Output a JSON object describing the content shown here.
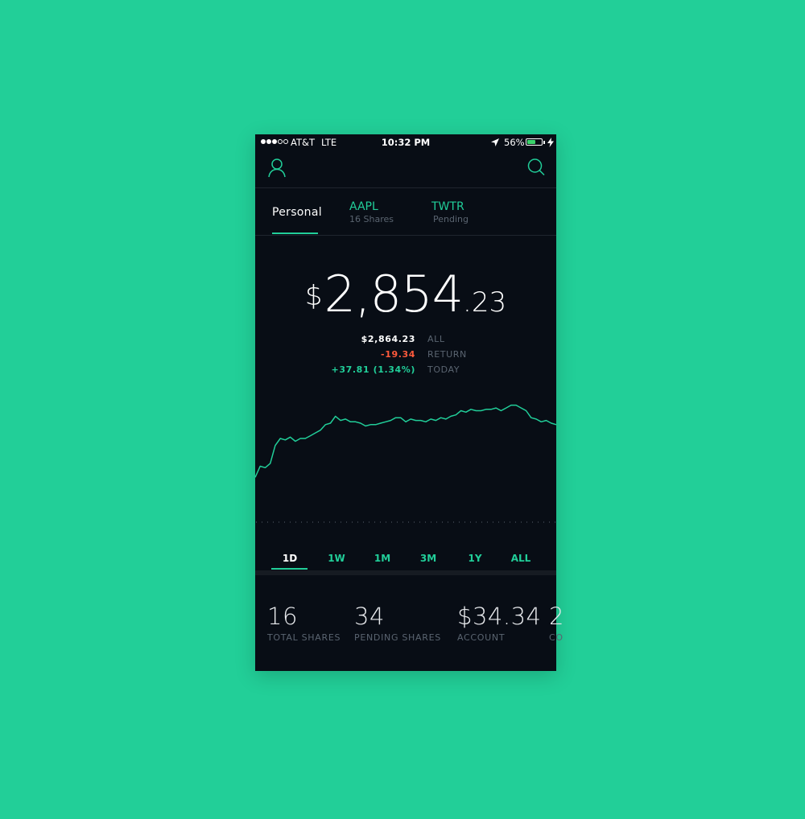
{
  "status_bar": {
    "carrier": "AT&T",
    "network": "LTE",
    "time": "10:32 PM",
    "battery_percent": "56%",
    "battery_level": 0.56,
    "signal_strength": 3,
    "signal_max": 5
  },
  "header": {
    "profile_icon": "user-icon",
    "search_icon": "search-icon"
  },
  "tabs": [
    {
      "label": "Personal",
      "sub": "",
      "active": true
    },
    {
      "label": "AAPL",
      "sub": "16 Shares",
      "active": false
    },
    {
      "label": "TWTR",
      "sub": "Pending",
      "active": false
    }
  ],
  "balance": {
    "currency": "$",
    "main": "2,854",
    "cents": ".23"
  },
  "stats": [
    {
      "value": "$2,864.23",
      "label": "ALL",
      "color": "#ffffff"
    },
    {
      "value": "-19.34",
      "label": "RETURN",
      "color": "#ff5a3c"
    },
    {
      "value": "+37.81 (1.34%)",
      "label": "TODAY",
      "color": "#21ce99"
    }
  ],
  "chart_data": {
    "type": "line",
    "color": "#21ce99",
    "baseline": "dotted",
    "grid": false,
    "values": [
      2811,
      2819,
      2818,
      2821,
      2834,
      2839,
      2838,
      2840,
      2837,
      2839,
      2839,
      2841,
      2843,
      2845,
      2849,
      2850,
      2855,
      2852,
      2853,
      2851,
      2851,
      2850,
      2848,
      2849,
      2849,
      2850,
      2851,
      2852,
      2854,
      2854,
      2851,
      2853,
      2852,
      2852,
      2851,
      2853,
      2852,
      2854,
      2853,
      2855,
      2856,
      2859,
      2858,
      2860,
      2859,
      2859,
      2860,
      2860,
      2861,
      2859,
      2861,
      2863,
      2863,
      2861,
      2859,
      2854,
      2853,
      2851,
      2852,
      2850,
      2849
    ],
    "ylim": [
      2788,
      2868
    ]
  },
  "ranges": [
    "1D",
    "1W",
    "1M",
    "3M",
    "1Y",
    "ALL"
  ],
  "active_range": "1D",
  "metrics": [
    {
      "value": "16",
      "label": "TOTAL SHARES"
    },
    {
      "value": "34",
      "label": "PENDING SHARES"
    },
    {
      "value": "$34.34",
      "label": "ACCOUNT"
    },
    {
      "value": "2",
      "label": "CO"
    }
  ]
}
